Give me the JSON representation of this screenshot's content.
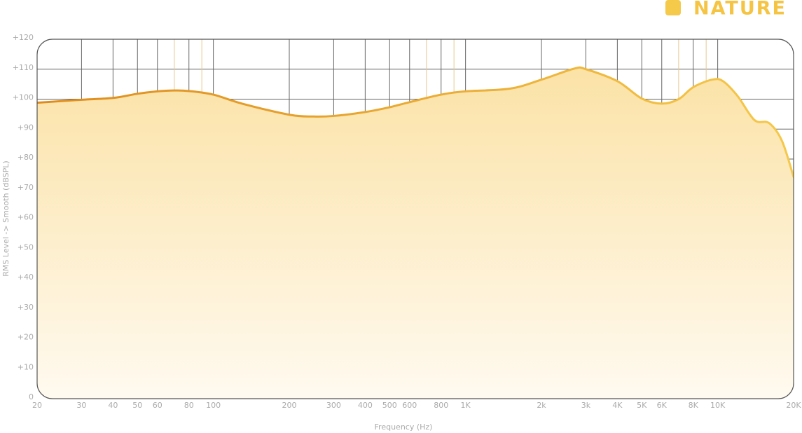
{
  "chart_data": {
    "type": "line",
    "x_label": "Frequency (Hz)",
    "y_label": "RMS Level -> Smooth (dBSPL)",
    "log_x": true,
    "grid": true,
    "legend": "top-right",
    "xlim": [
      20,
      20000
    ],
    "ylim": [
      0,
      120
    ],
    "xticks": [
      20,
      30,
      40,
      50,
      60,
      80,
      100,
      200,
      300,
      400,
      500,
      600,
      800,
      {
        "value": 1000,
        "label": "1K"
      },
      {
        "value": 2000,
        "label": "2k"
      },
      {
        "value": 3000,
        "label": "3k"
      },
      {
        "value": 4000,
        "label": "4K"
      },
      {
        "value": 5000,
        "label": "5K"
      },
      {
        "value": 6000,
        "label": "6K"
      },
      {
        "value": 8000,
        "label": "8K"
      },
      {
        "value": 10000,
        "label": "10K"
      },
      {
        "value": 20000,
        "label": "20K"
      }
    ],
    "minor_xticks": [
      70,
      90,
      700,
      900,
      7000,
      9000
    ],
    "yticks": [
      0,
      {
        "value": 10,
        "label": "+10"
      },
      {
        "value": 20,
        "label": "+20"
      },
      {
        "value": 30,
        "label": "+30"
      },
      {
        "value": 40,
        "label": "+40"
      },
      {
        "value": 50,
        "label": "+50"
      },
      {
        "value": 60,
        "label": "+60"
      },
      {
        "value": 70,
        "label": "+70"
      },
      {
        "value": 80,
        "label": "+80"
      },
      {
        "value": 90,
        "label": "+90"
      },
      {
        "value": 100,
        "label": "+100"
      },
      {
        "value": 110,
        "label": "+110"
      },
      {
        "value": 120,
        "label": "+120"
      }
    ],
    "x": [
      20,
      30,
      40,
      50,
      60,
      70,
      80,
      100,
      130,
      200,
      250,
      300,
      400,
      500,
      600,
      800,
      1000,
      1500,
      2000,
      2700,
      3000,
      4000,
      5000,
      6000,
      7000,
      8000,
      9500,
      10500,
      12000,
      14000,
      16000,
      18000,
      20000
    ],
    "series": [
      {
        "name": "NATURE",
        "color": "#f5c94a",
        "color_start": "#de8c1c",
        "values": [
          98.8,
          99.8,
          100.4,
          101.8,
          102.6,
          102.9,
          102.7,
          101.5,
          98.5,
          94.8,
          94.2,
          94.4,
          95.7,
          97.3,
          99.0,
          101.5,
          102.6,
          103.5,
          106.5,
          110.2,
          110.0,
          106.0,
          100.2,
          98.5,
          100.0,
          104.0,
          106.5,
          106.0,
          101.0,
          93.0,
          92.0,
          86.0,
          74.0
        ]
      }
    ]
  }
}
